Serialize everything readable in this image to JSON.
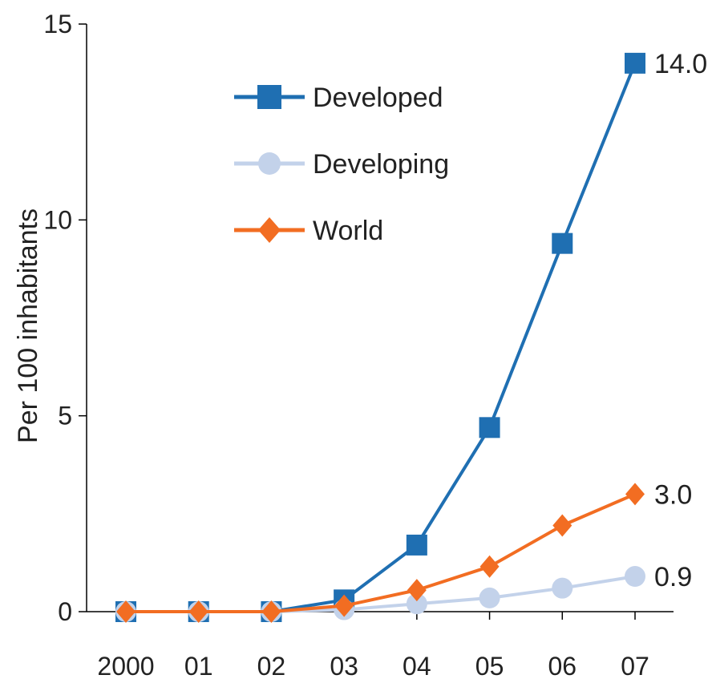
{
  "chart_data": {
    "type": "line",
    "title": "",
    "xlabel": "",
    "ylabel": "Per 100 inhabitants",
    "ylim": [
      0,
      15
    ],
    "yticks": [
      0,
      5,
      10,
      15
    ],
    "categories": [
      "2000",
      "01",
      "02",
      "03",
      "04",
      "05",
      "06",
      "07"
    ],
    "grid": false,
    "legend_position": "top-center",
    "series": [
      {
        "name": "Developed",
        "color": "#1f6fb2",
        "marker": "square",
        "values": [
          0.0,
          0.0,
          0.0,
          0.3,
          1.7,
          4.7,
          9.4,
          14.0
        ],
        "end_label": "14.0"
      },
      {
        "name": "Developing",
        "color": "#c3d2ea",
        "marker": "circle",
        "values": [
          0.0,
          0.0,
          0.0,
          0.05,
          0.2,
          0.35,
          0.6,
          0.9
        ],
        "end_label": "0.9"
      },
      {
        "name": "World",
        "color": "#f26d22",
        "marker": "diamond",
        "values": [
          0.0,
          0.0,
          0.0,
          0.15,
          0.55,
          1.15,
          2.2,
          3.0
        ],
        "end_label": "3.0"
      }
    ]
  }
}
